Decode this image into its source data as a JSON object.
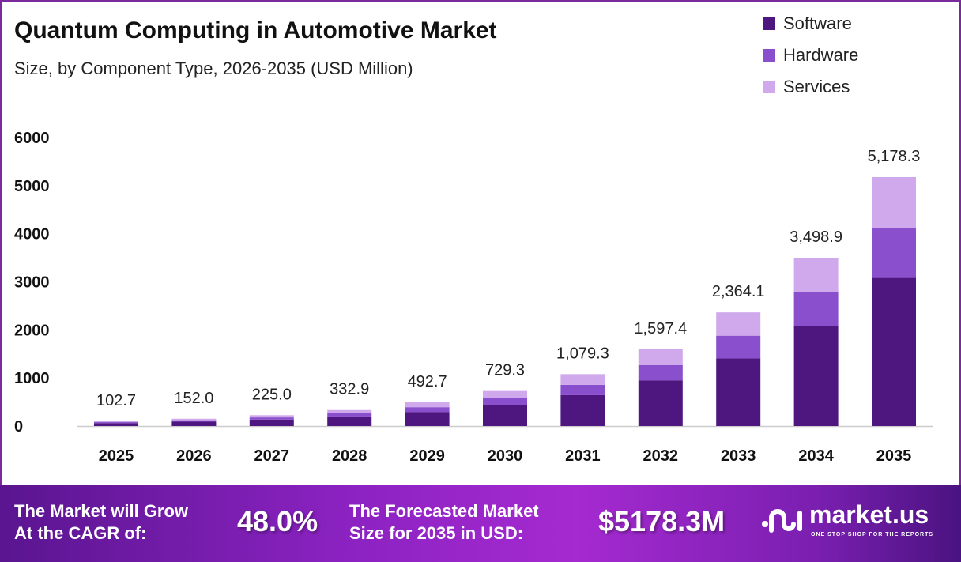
{
  "header": {
    "title": "Quantum Computing in Automotive Market",
    "subtitle": "Size, by Component Type, 2026-2035 (USD Million)"
  },
  "chart_data": {
    "type": "bar",
    "stacked": true,
    "title": "Quantum Computing in Automotive Market",
    "subtitle": "Size, by Component Type, 2026-2035 (USD Million)",
    "xlabel": "",
    "ylabel": "",
    "ylim": [
      0,
      6000
    ],
    "yticks": [
      0,
      1000,
      2000,
      3000,
      4000,
      5000,
      6000
    ],
    "legend_position": "top-right",
    "categories": [
      "2025",
      "2026",
      "2027",
      "2028",
      "2029",
      "2030",
      "2031",
      "2032",
      "2033",
      "2034",
      "2035"
    ],
    "totals": [
      102.7,
      152.0,
      225.0,
      332.9,
      492.7,
      729.3,
      1079.3,
      1597.4,
      2364.1,
      3498.9,
      5178.3
    ],
    "total_labels": [
      "102.7",
      "152.0",
      "225.0",
      "332.9",
      "492.7",
      "729.3",
      "1,079.3",
      "1,597.4",
      "2,364.1",
      "3,498.9",
      "5,178.3"
    ],
    "series": [
      {
        "name": "Software",
        "color": "#4e1780",
        "values": [
          61.1,
          90.4,
          133.9,
          198.1,
          293.2,
          433.9,
          642.2,
          950.5,
          1406.6,
          2081.8,
          3081.1
        ]
      },
      {
        "name": "Hardware",
        "color": "#8a4fcc",
        "values": [
          20.5,
          30.4,
          45.0,
          66.6,
          98.5,
          145.9,
          215.9,
          319.5,
          472.8,
          699.8,
          1035.7
        ]
      },
      {
        "name": "Services",
        "color": "#d0a8ec",
        "values": [
          21.1,
          31.2,
          46.1,
          68.2,
          101.0,
          149.5,
          221.2,
          327.4,
          484.7,
          717.3,
          1061.5
        ]
      }
    ]
  },
  "banner": {
    "cagr_label": "The Market will Grow At the CAGR of:",
    "cagr_line1": "The Market will Grow",
    "cagr_line2": "At the CAGR of:",
    "cagr_value": "48.0%",
    "forecast_line1": "The Forecasted Market",
    "forecast_line2": "Size for 2035 in USD:",
    "forecast_value": "$5178.3M",
    "brand": "market.us",
    "tagline": "ONE STOP SHOP FOR THE REPORTS"
  }
}
